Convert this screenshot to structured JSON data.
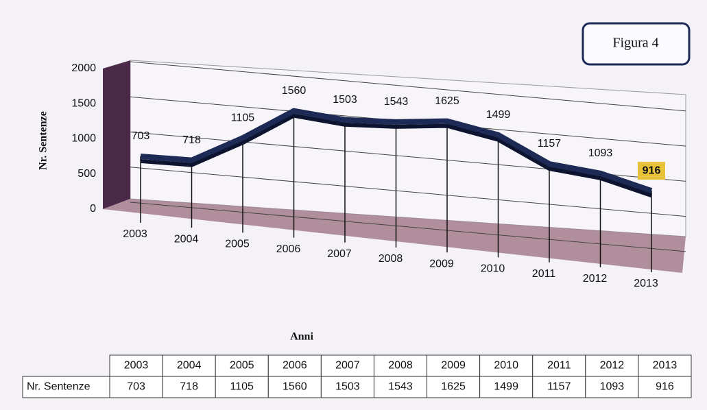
{
  "chart_data": {
    "type": "line",
    "title": "Figura 4",
    "y_label": "Nr. Sentenze",
    "x_label": "Anni",
    "categories": [
      "2003",
      "2004",
      "2005",
      "2006",
      "2007",
      "2008",
      "2009",
      "2010",
      "2011",
      "2012",
      "2013"
    ],
    "series": [
      {
        "name": "Nr. Sentenze",
        "color": "#1d2a55",
        "values": [
          703,
          718,
          1105,
          1560,
          1503,
          1543,
          1625,
          1499,
          1157,
          1093,
          916
        ]
      }
    ],
    "ylim": [
      0,
      2000
    ],
    "yticks": [
      0,
      500,
      1000,
      1500,
      2000
    ],
    "grid": true
  }
}
